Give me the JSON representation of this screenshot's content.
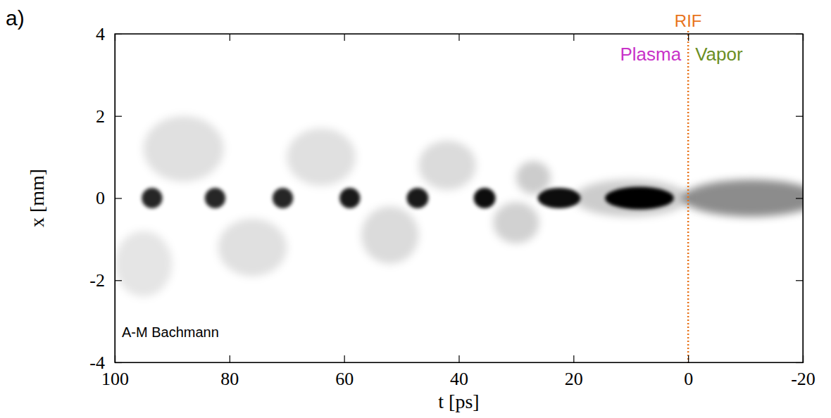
{
  "chart_data": {
    "type": "image",
    "panel_label": "a)",
    "xlabel": "t [ps]",
    "ylabel": "x [mm]",
    "xlim": [
      100,
      -20
    ],
    "ylim": [
      -4,
      4
    ],
    "xticks": [
      100,
      80,
      60,
      40,
      20,
      0,
      -20
    ],
    "yticks": [
      -4,
      -2,
      0,
      2,
      4
    ],
    "marker_line": {
      "t": 0,
      "label": "RIF",
      "color": "#e8731a"
    },
    "regions": [
      {
        "label": "Plasma",
        "color": "#c832c8"
      },
      {
        "label": "Vapor",
        "color": "#6b8e23"
      }
    ],
    "credit": "A-M Bachmann",
    "features": [
      {
        "t": 95,
        "x": -1.6,
        "dt": 10,
        "dx": 1.6,
        "darkness": 0.1
      },
      {
        "t": 88,
        "x": 1.2,
        "dt": 14,
        "dx": 1.6,
        "darkness": 0.12
      },
      {
        "t": 76,
        "x": -1.2,
        "dt": 12,
        "dx": 1.4,
        "darkness": 0.12
      },
      {
        "t": 64,
        "x": 1.0,
        "dt": 12,
        "dx": 1.4,
        "darkness": 0.12
      },
      {
        "t": 52,
        "x": -0.9,
        "dt": 10,
        "dx": 1.4,
        "darkness": 0.14
      },
      {
        "t": 42,
        "x": 0.8,
        "dt": 10,
        "dx": 1.2,
        "darkness": 0.14
      },
      {
        "t": 30,
        "x": -0.6,
        "dt": 8,
        "dx": 1.0,
        "darkness": 0.18
      },
      {
        "t": 27,
        "x": 0.5,
        "dt": 6,
        "dx": 0.8,
        "darkness": 0.2
      },
      {
        "t": 10,
        "x": 0,
        "dt": 20,
        "dx": 0.9,
        "darkness": 0.2
      },
      {
        "t": -11,
        "x": 0,
        "dt": 24,
        "dx": 0.9,
        "darkness": 0.45
      },
      {
        "t": 93.5,
        "x": 0,
        "dt": 3.6,
        "dx": 0.5,
        "darkness": 0.85
      },
      {
        "t": 82.5,
        "x": 0,
        "dt": 3.6,
        "dx": 0.5,
        "darkness": 0.85
      },
      {
        "t": 70.7,
        "x": 0,
        "dt": 3.6,
        "dx": 0.5,
        "darkness": 0.85
      },
      {
        "t": 59,
        "x": 0,
        "dt": 3.6,
        "dx": 0.5,
        "darkness": 0.9
      },
      {
        "t": 47.2,
        "x": 0,
        "dt": 3.8,
        "dx": 0.5,
        "darkness": 0.9
      },
      {
        "t": 35.5,
        "x": 0,
        "dt": 3.8,
        "dx": 0.5,
        "darkness": 0.95
      },
      {
        "t": 22.5,
        "x": 0,
        "dt": 7.5,
        "dx": 0.5,
        "darkness": 0.95
      },
      {
        "t": 8.5,
        "x": 0,
        "dt": 12,
        "dx": 0.55,
        "darkness": 1
      }
    ]
  }
}
